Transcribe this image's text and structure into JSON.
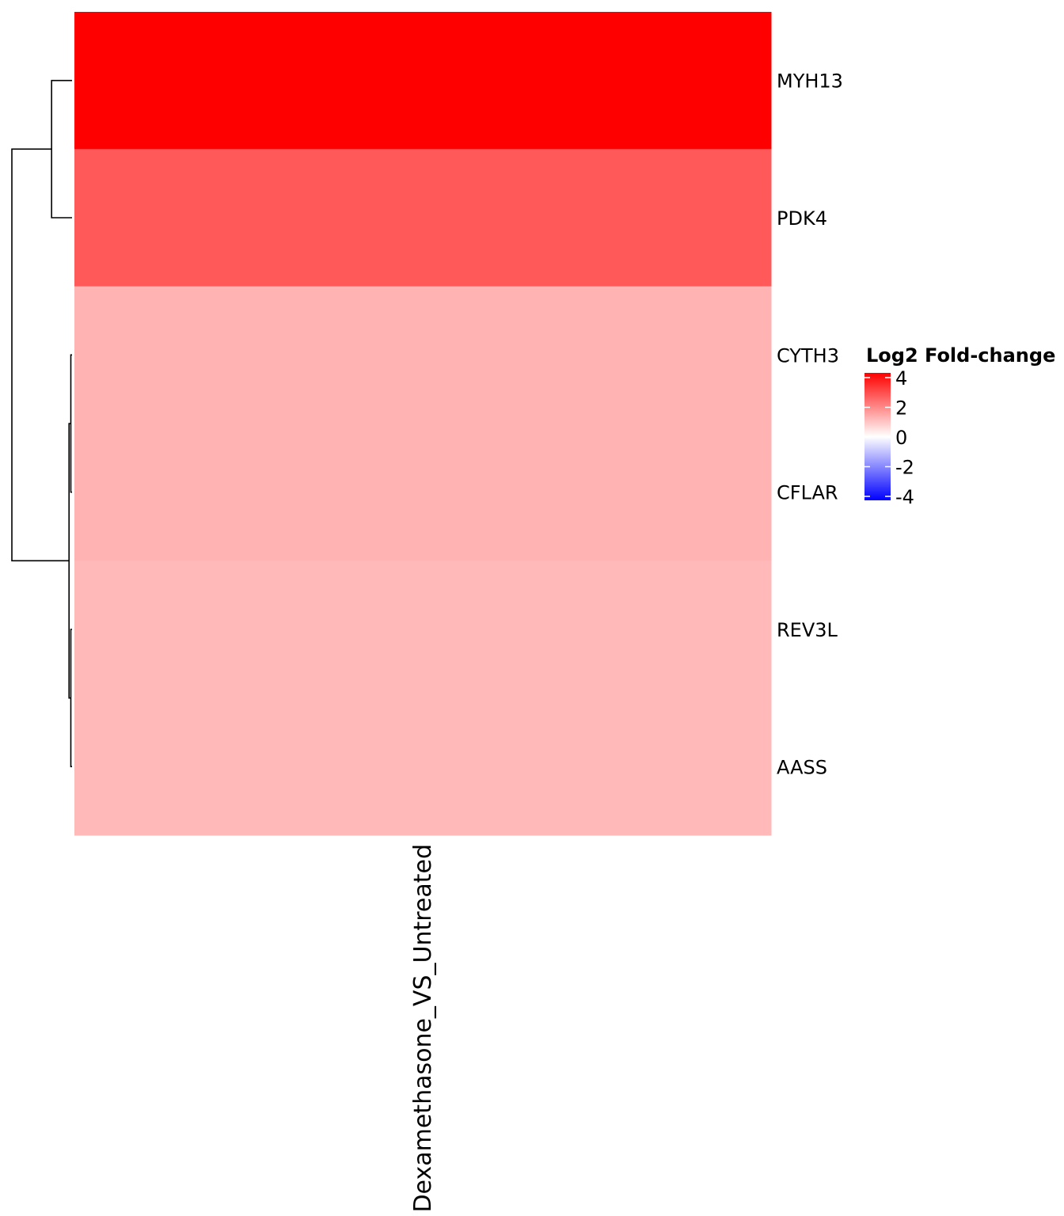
{
  "chart_data": {
    "type": "heatmap",
    "columns": [
      "Dexamethasone_VS_Untreated"
    ],
    "rows": [
      "MYH13",
      "PDK4",
      "CYTH3",
      "CFLAR",
      "REV3L",
      "AASS"
    ],
    "values": [
      [
        4.0
      ],
      [
        2.6
      ],
      [
        1.2
      ],
      [
        1.2
      ],
      [
        1.1
      ],
      [
        1.1
      ]
    ],
    "color_scale": {
      "stops": [
        {
          "value": -4,
          "color": "#0000ff"
        },
        {
          "value": 0,
          "color": "#ffffff"
        },
        {
          "value": 4,
          "color": "#ff0000"
        }
      ]
    },
    "legend": {
      "title": "Log2 Fold-change",
      "ticks": [
        4,
        2,
        0,
        -2,
        -4
      ],
      "tick_labels": [
        "4",
        "2",
        "0",
        "-2",
        "-4"
      ],
      "placement": "right"
    },
    "row_dendrogram": {
      "merges": [
        {
          "id": "n1",
          "left": "CYTH3",
          "right": "CFLAR",
          "height": 0.02
        },
        {
          "id": "n2",
          "left": "REV3L",
          "right": "AASS",
          "height": 0.02
        },
        {
          "id": "n3",
          "left": "n1",
          "right": "n2",
          "height": 0.05
        },
        {
          "id": "n4",
          "left": "MYH13",
          "right": "PDK4",
          "height": 0.34
        },
        {
          "id": "n5",
          "left": "n4",
          "right": "n3",
          "height": 1.0
        }
      ]
    }
  }
}
